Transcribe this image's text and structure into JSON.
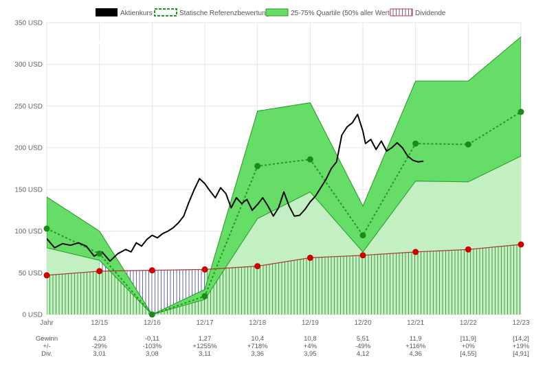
{
  "watermark": "aktienbewertung.info",
  "legend": [
    {
      "label": "Aktienkurs",
      "kind": "price"
    },
    {
      "label": "Statische Referenzbewertung",
      "kind": "ref"
    },
    {
      "label": "25-75% Quartile (50% aller Werte)",
      "kind": "quartile"
    },
    {
      "label": "Dividende",
      "kind": "dividend"
    }
  ],
  "colors": {
    "price": "#000000",
    "reference": "#1a9a1a",
    "quartile_fill": "#66dd66",
    "quartile_line": "#229922",
    "lower_fill": "#c2f0c2",
    "dividend": "#cc0000",
    "hatch_green": "#4a9a4a",
    "hatch_blue": "#6666aa",
    "grid": "#e6e6e6"
  },
  "chart_data": {
    "type": "line",
    "y_unit": "USD",
    "ylim": [
      0,
      350
    ],
    "yticks": [
      "0 USD",
      "50 USD",
      "100 USD",
      "150 USD",
      "200 USD",
      "250 USD",
      "300 USD",
      "350 USD"
    ],
    "ytick_values": [
      0,
      50,
      100,
      150,
      200,
      250,
      300,
      350
    ],
    "categories": [
      "Jahr",
      "12/15",
      "12/16",
      "12/17",
      "12/18",
      "12/19",
      "12/20",
      "12/21",
      "12/22",
      "12/23"
    ],
    "series": [
      {
        "name": "Statische Referenzbewertung",
        "values": [
          103,
          73,
          0,
          22,
          178,
          186,
          95,
          205,
          204,
          243
        ]
      },
      {
        "name": "25-75% Quartile (50% aller Werte)",
        "upper": [
          141,
          100,
          0,
          30,
          244,
          254,
          130,
          280,
          280,
          333
        ],
        "lower": [
          80,
          65,
          0,
          18,
          115,
          147,
          75,
          160,
          159,
          190
        ]
      },
      {
        "name": "Dividende",
        "values": [
          47,
          52,
          53,
          54,
          58,
          68,
          71,
          75,
          78,
          84
        ]
      },
      {
        "name": "Aktienkurs",
        "x": [
          0,
          0.15,
          0.3,
          0.45,
          0.6,
          0.75,
          0.9,
          1.05,
          1.2,
          1.35,
          1.5,
          1.6,
          1.7,
          1.8,
          1.9,
          2.0,
          2.1,
          2.2,
          2.3,
          2.4,
          2.5,
          2.6,
          2.7,
          2.8,
          2.9,
          3.0,
          3.1,
          3.2,
          3.3,
          3.4,
          3.5,
          3.6,
          3.7,
          3.8,
          3.9,
          4.0,
          4.1,
          4.2,
          4.3,
          4.4,
          4.5,
          4.6,
          4.7,
          4.8,
          4.9,
          5.0,
          5.1,
          5.2,
          5.3,
          5.4,
          5.5,
          5.6,
          5.7,
          5.8,
          5.9,
          6.0,
          6.05,
          6.15,
          6.25,
          6.35,
          6.45,
          6.55,
          6.65,
          6.75,
          6.85,
          6.95,
          7.05,
          7.15
        ],
        "values": [
          91,
          80,
          85,
          83,
          86,
          82,
          70,
          75,
          64,
          73,
          78,
          75,
          86,
          82,
          90,
          95,
          92,
          97,
          100,
          104,
          110,
          118,
          135,
          150,
          163,
          157,
          148,
          140,
          152,
          145,
          128,
          140,
          133,
          138,
          125,
          132,
          140,
          130,
          118,
          128,
          147,
          130,
          118,
          119,
          126,
          135,
          142,
          152,
          162,
          175,
          183,
          215,
          225,
          230,
          240,
          220,
          205,
          210,
          198,
          208,
          196,
          200,
          206,
          200,
          190,
          185,
          183,
          184
        ]
      }
    ],
    "table": {
      "row_labels": [
        "Gewinn",
        "+/-",
        "Div."
      ],
      "columns": [
        [
          "4,23",
          "-29%",
          "3,01"
        ],
        [
          "-0,11",
          "-103%",
          "3,08"
        ],
        [
          "1,27",
          "+1255%",
          "3,11"
        ],
        [
          "10,4",
          "+718%",
          "3,36"
        ],
        [
          "10,8",
          "+4%",
          "3,95"
        ],
        [
          "5,51",
          "-49%",
          "4,12"
        ],
        [
          "11,9",
          "+116%",
          "4,36"
        ],
        [
          "[11,9]",
          "+0%",
          "[4,55]"
        ],
        [
          "[14,2]",
          "+19%",
          "[4,91]"
        ]
      ]
    }
  }
}
